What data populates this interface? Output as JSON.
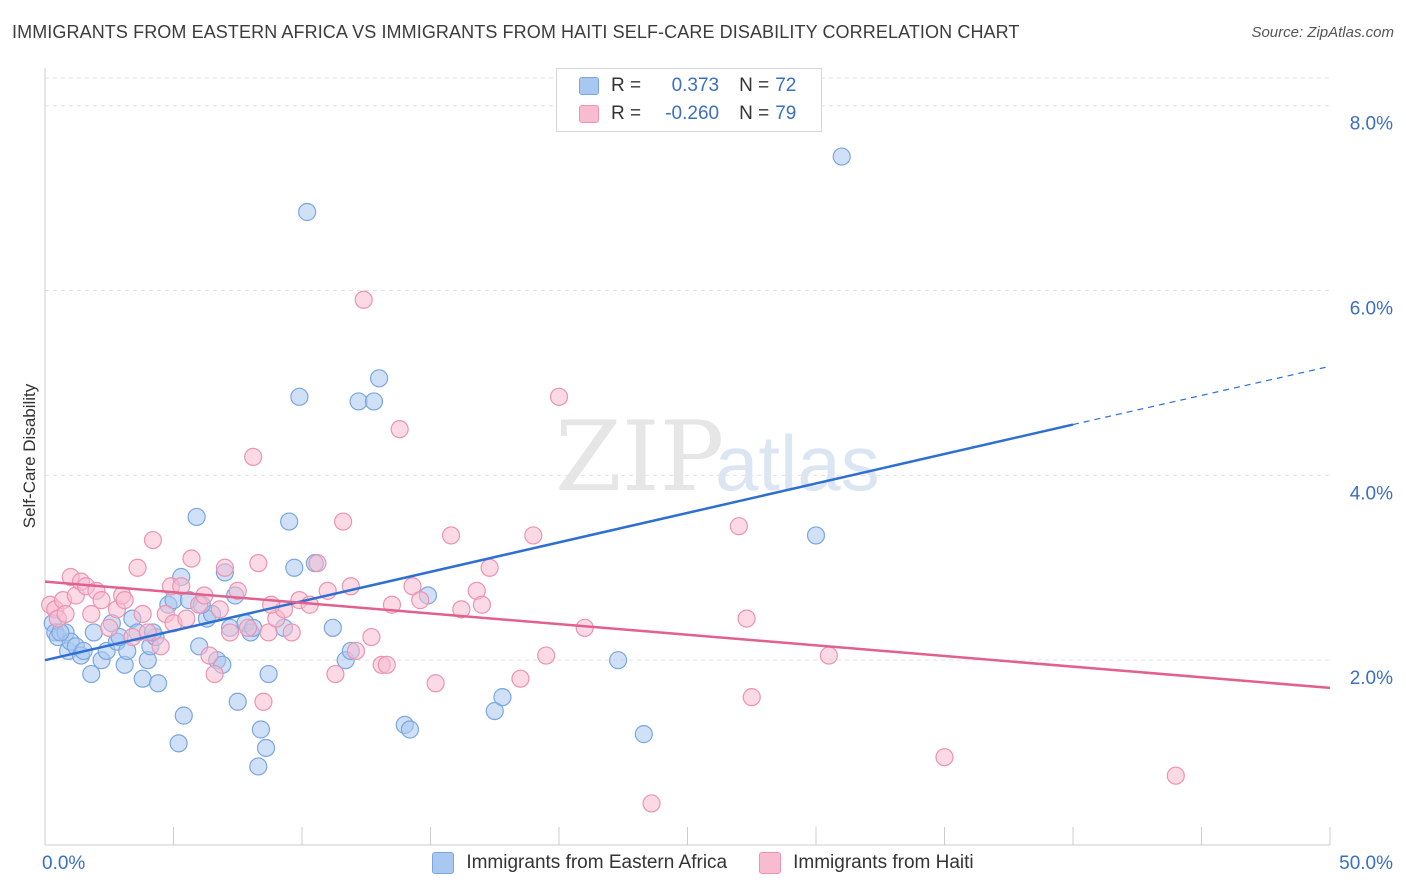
{
  "title": "IMMIGRANTS FROM EASTERN AFRICA VS IMMIGRANTS FROM HAITI SELF-CARE DISABILITY CORRELATION CHART",
  "source": "Source: ZipAtlas.com",
  "watermark": {
    "zip": "ZIP",
    "atlas": "atlas"
  },
  "legend": {
    "rows": [
      {
        "r_label": "R =",
        "r_value": "0.373",
        "n_label": "N =",
        "n_value": "72",
        "color": "#a9c8f1",
        "border": "#7aa6e0"
      },
      {
        "r_label": "R =",
        "r_value": "-0.260",
        "n_label": "N =",
        "n_value": "79",
        "color": "#f7bcd0",
        "border": "#ec93b1"
      }
    ]
  },
  "chart_data": {
    "type": "scatter",
    "title": "IMMIGRANTS FROM EASTERN AFRICA VS IMMIGRANTS FROM HAITI SELF-CARE DISABILITY CORRELATION CHART",
    "xlabel": "",
    "ylabel": "Self-Care Disability",
    "xlim": [
      0,
      50
    ],
    "ylim": [
      0,
      8.3
    ],
    "x_tick_labels": [
      "0.0%",
      "50.0%"
    ],
    "y_ticks": [
      2,
      4,
      6,
      8
    ],
    "y_tick_labels": [
      "2.0%",
      "4.0%",
      "6.0%",
      "8.0%"
    ],
    "grid": true,
    "series": [
      {
        "name": "Immigrants from Eastern Africa",
        "color": "#a9c8f1",
        "edge": "#7aa6e0",
        "line_color": "#2e6fd1",
        "trend": {
          "x0": 0,
          "y0": 2.0,
          "x1": 40,
          "y1": 4.55,
          "dash_to_x": 50,
          "dash_to_y": 5.18
        },
        "points": [
          [
            0.3,
            2.4
          ],
          [
            0.4,
            2.3
          ],
          [
            0.5,
            2.25
          ],
          [
            0.8,
            2.3
          ],
          [
            0.9,
            2.1
          ],
          [
            1.0,
            2.2
          ],
          [
            1.2,
            2.15
          ],
          [
            1.4,
            2.05
          ],
          [
            1.5,
            2.1
          ],
          [
            1.8,
            1.85
          ],
          [
            1.9,
            2.3
          ],
          [
            2.2,
            2.0
          ],
          [
            2.4,
            2.1
          ],
          [
            2.6,
            2.4
          ],
          [
            2.8,
            2.2
          ],
          [
            3.1,
            1.95
          ],
          [
            3.2,
            2.1
          ],
          [
            3.4,
            2.45
          ],
          [
            3.6,
            2.3
          ],
          [
            3.8,
            1.8
          ],
          [
            4.0,
            2.0
          ],
          [
            4.1,
            2.15
          ],
          [
            4.3,
            2.25
          ],
          [
            4.4,
            1.75
          ],
          [
            4.8,
            2.6
          ],
          [
            5.0,
            2.65
          ],
          [
            5.2,
            1.1
          ],
          [
            5.3,
            2.9
          ],
          [
            5.4,
            1.4
          ],
          [
            5.6,
            2.65
          ],
          [
            5.9,
            3.55
          ],
          [
            6.0,
            2.15
          ],
          [
            6.3,
            2.45
          ],
          [
            6.5,
            2.5
          ],
          [
            6.7,
            2.0
          ],
          [
            6.9,
            1.95
          ],
          [
            7.0,
            2.95
          ],
          [
            7.2,
            2.35
          ],
          [
            7.4,
            2.7
          ],
          [
            7.5,
            1.55
          ],
          [
            7.8,
            2.4
          ],
          [
            8.0,
            2.3
          ],
          [
            8.1,
            2.35
          ],
          [
            8.3,
            0.85
          ],
          [
            8.4,
            1.25
          ],
          [
            8.6,
            1.05
          ],
          [
            8.7,
            1.85
          ],
          [
            9.3,
            2.35
          ],
          [
            9.5,
            3.5
          ],
          [
            9.7,
            3.0
          ],
          [
            9.9,
            4.85
          ],
          [
            10.2,
            6.85
          ],
          [
            10.5,
            3.05
          ],
          [
            11.2,
            2.35
          ],
          [
            11.7,
            2.0
          ],
          [
            11.9,
            2.1
          ],
          [
            12.2,
            4.8
          ],
          [
            12.8,
            4.8
          ],
          [
            13.0,
            5.05
          ],
          [
            14.0,
            1.3
          ],
          [
            14.2,
            1.25
          ],
          [
            14.9,
            2.7
          ],
          [
            17.5,
            1.45
          ],
          [
            17.8,
            1.6
          ],
          [
            22.3,
            2.0
          ],
          [
            23.3,
            1.2
          ],
          [
            30.0,
            3.35
          ],
          [
            31.0,
            7.45
          ],
          [
            0.6,
            2.3
          ],
          [
            2.9,
            2.25
          ],
          [
            4.2,
            2.3
          ],
          [
            6.1,
            2.6
          ]
        ]
      },
      {
        "name": "Immigrants from Haiti",
        "color": "#f7bcd0",
        "edge": "#ec93b1",
        "line_color": "#e0608e",
        "trend": {
          "x0": 0,
          "y0": 2.85,
          "x1": 50,
          "y1": 1.7
        },
        "points": [
          [
            0.2,
            2.6
          ],
          [
            0.4,
            2.55
          ],
          [
            0.5,
            2.45
          ],
          [
            0.7,
            2.65
          ],
          [
            0.8,
            2.5
          ],
          [
            1.0,
            2.9
          ],
          [
            1.2,
            2.7
          ],
          [
            1.4,
            2.85
          ],
          [
            1.6,
            2.8
          ],
          [
            1.8,
            2.5
          ],
          [
            2.0,
            2.75
          ],
          [
            2.2,
            2.65
          ],
          [
            2.5,
            2.35
          ],
          [
            2.8,
            2.55
          ],
          [
            3.0,
            2.7
          ],
          [
            3.1,
            2.65
          ],
          [
            3.4,
            2.25
          ],
          [
            3.6,
            3.0
          ],
          [
            3.8,
            2.5
          ],
          [
            4.0,
            2.3
          ],
          [
            4.2,
            3.3
          ],
          [
            4.5,
            2.15
          ],
          [
            4.7,
            2.5
          ],
          [
            4.9,
            2.8
          ],
          [
            5.0,
            2.4
          ],
          [
            5.3,
            2.8
          ],
          [
            5.5,
            2.45
          ],
          [
            5.7,
            3.1
          ],
          [
            6.0,
            2.6
          ],
          [
            6.2,
            2.7
          ],
          [
            6.4,
            2.05
          ],
          [
            6.6,
            1.85
          ],
          [
            6.8,
            2.55
          ],
          [
            7.0,
            3.0
          ],
          [
            7.2,
            2.3
          ],
          [
            7.5,
            2.75
          ],
          [
            7.9,
            2.35
          ],
          [
            8.1,
            4.2
          ],
          [
            8.3,
            3.05
          ],
          [
            8.5,
            1.55
          ],
          [
            8.7,
            2.3
          ],
          [
            9.0,
            2.45
          ],
          [
            9.3,
            2.55
          ],
          [
            9.6,
            2.3
          ],
          [
            9.9,
            2.65
          ],
          [
            10.3,
            2.6
          ],
          [
            10.6,
            3.05
          ],
          [
            11.0,
            2.75
          ],
          [
            11.3,
            1.85
          ],
          [
            11.6,
            3.5
          ],
          [
            11.9,
            2.8
          ],
          [
            12.1,
            2.1
          ],
          [
            12.4,
            5.9
          ],
          [
            12.7,
            2.25
          ],
          [
            13.1,
            1.95
          ],
          [
            13.5,
            2.6
          ],
          [
            13.8,
            4.5
          ],
          [
            14.3,
            2.8
          ],
          [
            14.6,
            2.65
          ],
          [
            15.2,
            1.75
          ],
          [
            15.8,
            3.35
          ],
          [
            16.2,
            2.55
          ],
          [
            16.8,
            2.75
          ],
          [
            17.3,
            3.0
          ],
          [
            18.5,
            1.8
          ],
          [
            19.0,
            3.35
          ],
          [
            19.5,
            2.05
          ],
          [
            20.0,
            4.85
          ],
          [
            21.0,
            2.35
          ],
          [
            23.6,
            0.45
          ],
          [
            27.0,
            3.45
          ],
          [
            27.3,
            2.45
          ],
          [
            27.5,
            1.6
          ],
          [
            30.5,
            2.05
          ],
          [
            35.0,
            0.95
          ],
          [
            44.0,
            0.75
          ],
          [
            13.3,
            1.95
          ],
          [
            17.0,
            2.6
          ],
          [
            8.8,
            2.6
          ]
        ]
      }
    ]
  }
}
